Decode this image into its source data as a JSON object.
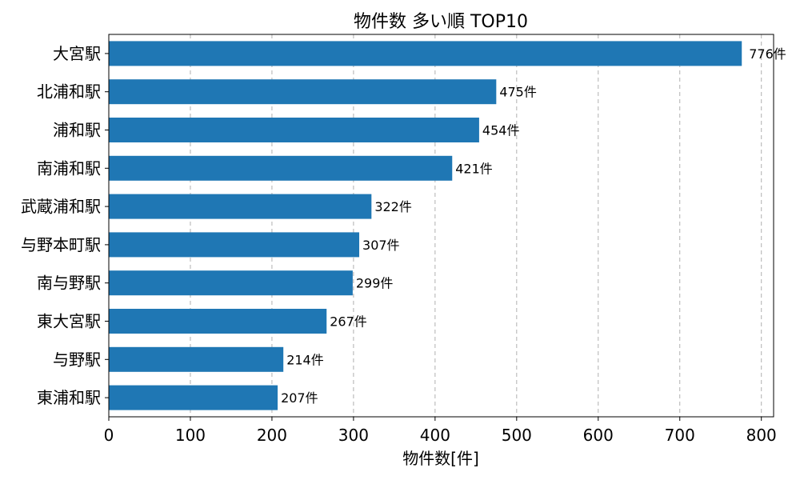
{
  "chart_data": {
    "type": "bar",
    "orientation": "horizontal",
    "title": "物件数 多い順 TOP10",
    "xlabel": "物件数[件]",
    "ylabel": "",
    "categories": [
      "大宮駅",
      "北浦和駅",
      "浦和駅",
      "南浦和駅",
      "武蔵浦和駅",
      "与野本町駅",
      "南与野駅",
      "東大宮駅",
      "与野駅",
      "東浦和駅"
    ],
    "values": [
      776,
      475,
      454,
      421,
      322,
      307,
      299,
      267,
      214,
      207
    ],
    "data_labels": [
      "776件",
      "475件",
      "454件",
      "421件",
      "322件",
      "307件",
      "299件",
      "267件",
      "214件",
      "207件"
    ],
    "xlim": [
      0,
      815
    ],
    "xticks": [
      0,
      100,
      200,
      300,
      400,
      500,
      600,
      700,
      800
    ],
    "xtick_labels": [
      "0",
      "100",
      "200",
      "300",
      "400",
      "500",
      "600",
      "700",
      "800"
    ],
    "grid": "x-dashed",
    "bar_color": "#1f77b4"
  }
}
